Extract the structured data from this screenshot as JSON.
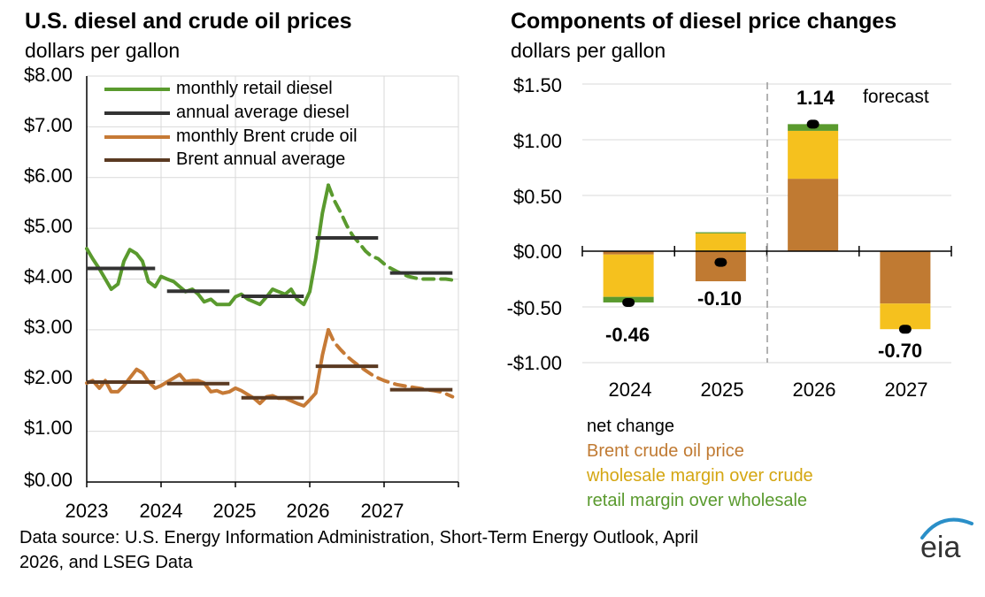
{
  "left": {
    "title": "U.S. diesel and crude oil prices",
    "subtitle": "dollars per gallon",
    "chart_data": {
      "type": "line",
      "title": "U.S. diesel and crude oil prices",
      "ylabel": "dollars per gallon",
      "ylim": [
        0,
        8
      ],
      "xlim": [
        2023,
        2028
      ],
      "y_ticks": [
        "$0.00",
        "$1.00",
        "$2.00",
        "$3.00",
        "$4.00",
        "$5.00",
        "$6.00",
        "$7.00",
        "$8.00"
      ],
      "x_ticks": [
        "2023",
        "2024",
        "2025",
        "2026",
        "2027"
      ],
      "grid": true,
      "legend_position": "top-left",
      "series": [
        {
          "name": "monthly retail diesel",
          "color": "#5a9a2e",
          "historical": [
            [
              2023.0,
              4.6
            ],
            [
              2023.08,
              4.4
            ],
            [
              2023.17,
              4.2
            ],
            [
              2023.25,
              4.0
            ],
            [
              2023.33,
              3.8
            ],
            [
              2023.42,
              3.9
            ],
            [
              2023.5,
              4.35
            ],
            [
              2023.58,
              4.58
            ],
            [
              2023.67,
              4.5
            ],
            [
              2023.75,
              4.35
            ],
            [
              2023.83,
              3.95
            ],
            [
              2023.92,
              3.85
            ],
            [
              2024.0,
              4.05
            ],
            [
              2024.08,
              4.0
            ],
            [
              2024.17,
              3.95
            ],
            [
              2024.25,
              3.85
            ],
            [
              2024.33,
              3.75
            ],
            [
              2024.42,
              3.8
            ],
            [
              2024.5,
              3.7
            ],
            [
              2024.58,
              3.55
            ],
            [
              2024.67,
              3.6
            ],
            [
              2024.75,
              3.5
            ],
            [
              2024.83,
              3.5
            ],
            [
              2024.92,
              3.5
            ],
            [
              2025.0,
              3.65
            ],
            [
              2025.08,
              3.7
            ],
            [
              2025.17,
              3.6
            ],
            [
              2025.25,
              3.55
            ],
            [
              2025.33,
              3.5
            ],
            [
              2025.42,
              3.65
            ],
            [
              2025.5,
              3.8
            ],
            [
              2025.58,
              3.75
            ],
            [
              2025.67,
              3.7
            ],
            [
              2025.75,
              3.8
            ],
            [
              2025.83,
              3.6
            ],
            [
              2025.92,
              3.5
            ],
            [
              2026.0,
              3.75
            ],
            [
              2026.08,
              4.4
            ],
            [
              2026.17,
              5.3
            ],
            [
              2026.25,
              5.85
            ]
          ],
          "forecast": [
            [
              2026.25,
              5.85
            ],
            [
              2026.33,
              5.55
            ],
            [
              2026.42,
              5.3
            ],
            [
              2026.5,
              5.05
            ],
            [
              2026.58,
              4.85
            ],
            [
              2026.67,
              4.7
            ],
            [
              2026.75,
              4.55
            ],
            [
              2026.83,
              4.45
            ],
            [
              2026.92,
              4.4
            ],
            [
              2027.0,
              4.3
            ],
            [
              2027.08,
              4.22
            ],
            [
              2027.17,
              4.15
            ],
            [
              2027.25,
              4.1
            ],
            [
              2027.33,
              4.05
            ],
            [
              2027.42,
              4.02
            ],
            [
              2027.5,
              4.0
            ],
            [
              2027.58,
              4.0
            ],
            [
              2027.67,
              4.0
            ],
            [
              2027.75,
              4.0
            ],
            [
              2027.83,
              4.0
            ],
            [
              2027.92,
              3.98
            ]
          ]
        },
        {
          "name": "annual average diesel",
          "color": "#333333",
          "segments": [
            [
              2023.0,
              2023.92,
              4.21
            ],
            [
              2024.08,
              2024.92,
              3.76
            ],
            [
              2025.08,
              2025.92,
              3.66
            ],
            [
              2026.08,
              2026.92,
              4.81
            ],
            [
              2027.08,
              2027.92,
              4.12
            ]
          ]
        },
        {
          "name": "monthly Brent crude oil",
          "color": "#c67a36",
          "historical": [
            [
              2023.0,
              1.95
            ],
            [
              2023.08,
              2.0
            ],
            [
              2023.17,
              1.85
            ],
            [
              2023.25,
              2.0
            ],
            [
              2023.33,
              1.78
            ],
            [
              2023.42,
              1.78
            ],
            [
              2023.5,
              1.9
            ],
            [
              2023.58,
              2.05
            ],
            [
              2023.67,
              2.22
            ],
            [
              2023.75,
              2.15
            ],
            [
              2023.83,
              1.98
            ],
            [
              2023.92,
              1.85
            ],
            [
              2024.0,
              1.9
            ],
            [
              2024.08,
              1.97
            ],
            [
              2024.17,
              2.05
            ],
            [
              2024.25,
              2.12
            ],
            [
              2024.33,
              1.98
            ],
            [
              2024.42,
              2.0
            ],
            [
              2024.5,
              2.0
            ],
            [
              2024.58,
              1.95
            ],
            [
              2024.67,
              1.78
            ],
            [
              2024.75,
              1.8
            ],
            [
              2024.83,
              1.75
            ],
            [
              2024.92,
              1.78
            ],
            [
              2025.0,
              1.85
            ],
            [
              2025.08,
              1.8
            ],
            [
              2025.17,
              1.72
            ],
            [
              2025.25,
              1.65
            ],
            [
              2025.33,
              1.55
            ],
            [
              2025.42,
              1.68
            ],
            [
              2025.5,
              1.7
            ],
            [
              2025.58,
              1.65
            ],
            [
              2025.67,
              1.65
            ],
            [
              2025.75,
              1.6
            ],
            [
              2025.83,
              1.55
            ],
            [
              2025.92,
              1.5
            ],
            [
              2026.0,
              1.62
            ],
            [
              2026.08,
              1.75
            ],
            [
              2026.17,
              2.5
            ],
            [
              2026.25,
              3.0
            ]
          ],
          "forecast": [
            [
              2026.25,
              3.0
            ],
            [
              2026.33,
              2.75
            ],
            [
              2026.42,
              2.6
            ],
            [
              2026.5,
              2.48
            ],
            [
              2026.58,
              2.38
            ],
            [
              2026.67,
              2.28
            ],
            [
              2026.75,
              2.2
            ],
            [
              2026.83,
              2.12
            ],
            [
              2026.92,
              2.05
            ],
            [
              2027.0,
              2.0
            ],
            [
              2027.08,
              1.96
            ],
            [
              2027.17,
              1.92
            ],
            [
              2027.25,
              1.9
            ],
            [
              2027.33,
              1.88
            ],
            [
              2027.42,
              1.86
            ],
            [
              2027.5,
              1.84
            ],
            [
              2027.58,
              1.82
            ],
            [
              2027.67,
              1.8
            ],
            [
              2027.75,
              1.78
            ],
            [
              2027.83,
              1.74
            ],
            [
              2027.92,
              1.68
            ]
          ]
        },
        {
          "name": "Brent annual average",
          "color": "#5a3a22",
          "segments": [
            [
              2023.0,
              2023.92,
              1.97
            ],
            [
              2024.08,
              2024.92,
              1.94
            ],
            [
              2025.08,
              2025.92,
              1.66
            ],
            [
              2026.08,
              2026.92,
              2.28
            ],
            [
              2027.08,
              2027.92,
              1.82
            ]
          ]
        }
      ]
    }
  },
  "right": {
    "title": "Components of diesel price changes",
    "subtitle": "dollars per gallon",
    "forecast_label": "forecast",
    "chart_data": {
      "type": "bar",
      "title": "Components of diesel price changes",
      "ylabel": "dollars per gallon",
      "ylim": [
        -1.0,
        1.5
      ],
      "y_ticks": [
        "$1.50",
        "$1.00",
        "$0.50",
        "$0.00",
        "-$0.50",
        "-$1.00"
      ],
      "categories": [
        "2024",
        "2025",
        "2026",
        "2027"
      ],
      "stacked": true,
      "series": [
        {
          "name": "Brent crude oil price",
          "color": "#c07a32",
          "values": [
            -0.03,
            -0.27,
            0.65,
            -0.47
          ]
        },
        {
          "name": "wholesale margin over crude",
          "color": "#f5c11e",
          "values": [
            -0.38,
            0.16,
            0.43,
            -0.23
          ]
        },
        {
          "name": "retail margin over wholesale",
          "color": "#5a9a2e",
          "values": [
            -0.05,
            0.01,
            0.06,
            0.0
          ]
        }
      ],
      "net_change": {
        "name": "net change",
        "values": [
          -0.46,
          -0.1,
          1.14,
          -0.7
        ],
        "labels": [
          "-0.46",
          "-0.10",
          "1.14",
          "-0.70"
        ]
      },
      "legend_position": "bottom"
    }
  },
  "footer": {
    "source_line1": "Data source: U.S. Energy Information Administration, Short-Term Energy Outlook, April",
    "source_line2": "2026, and LSEG Data",
    "logo": "eia"
  }
}
